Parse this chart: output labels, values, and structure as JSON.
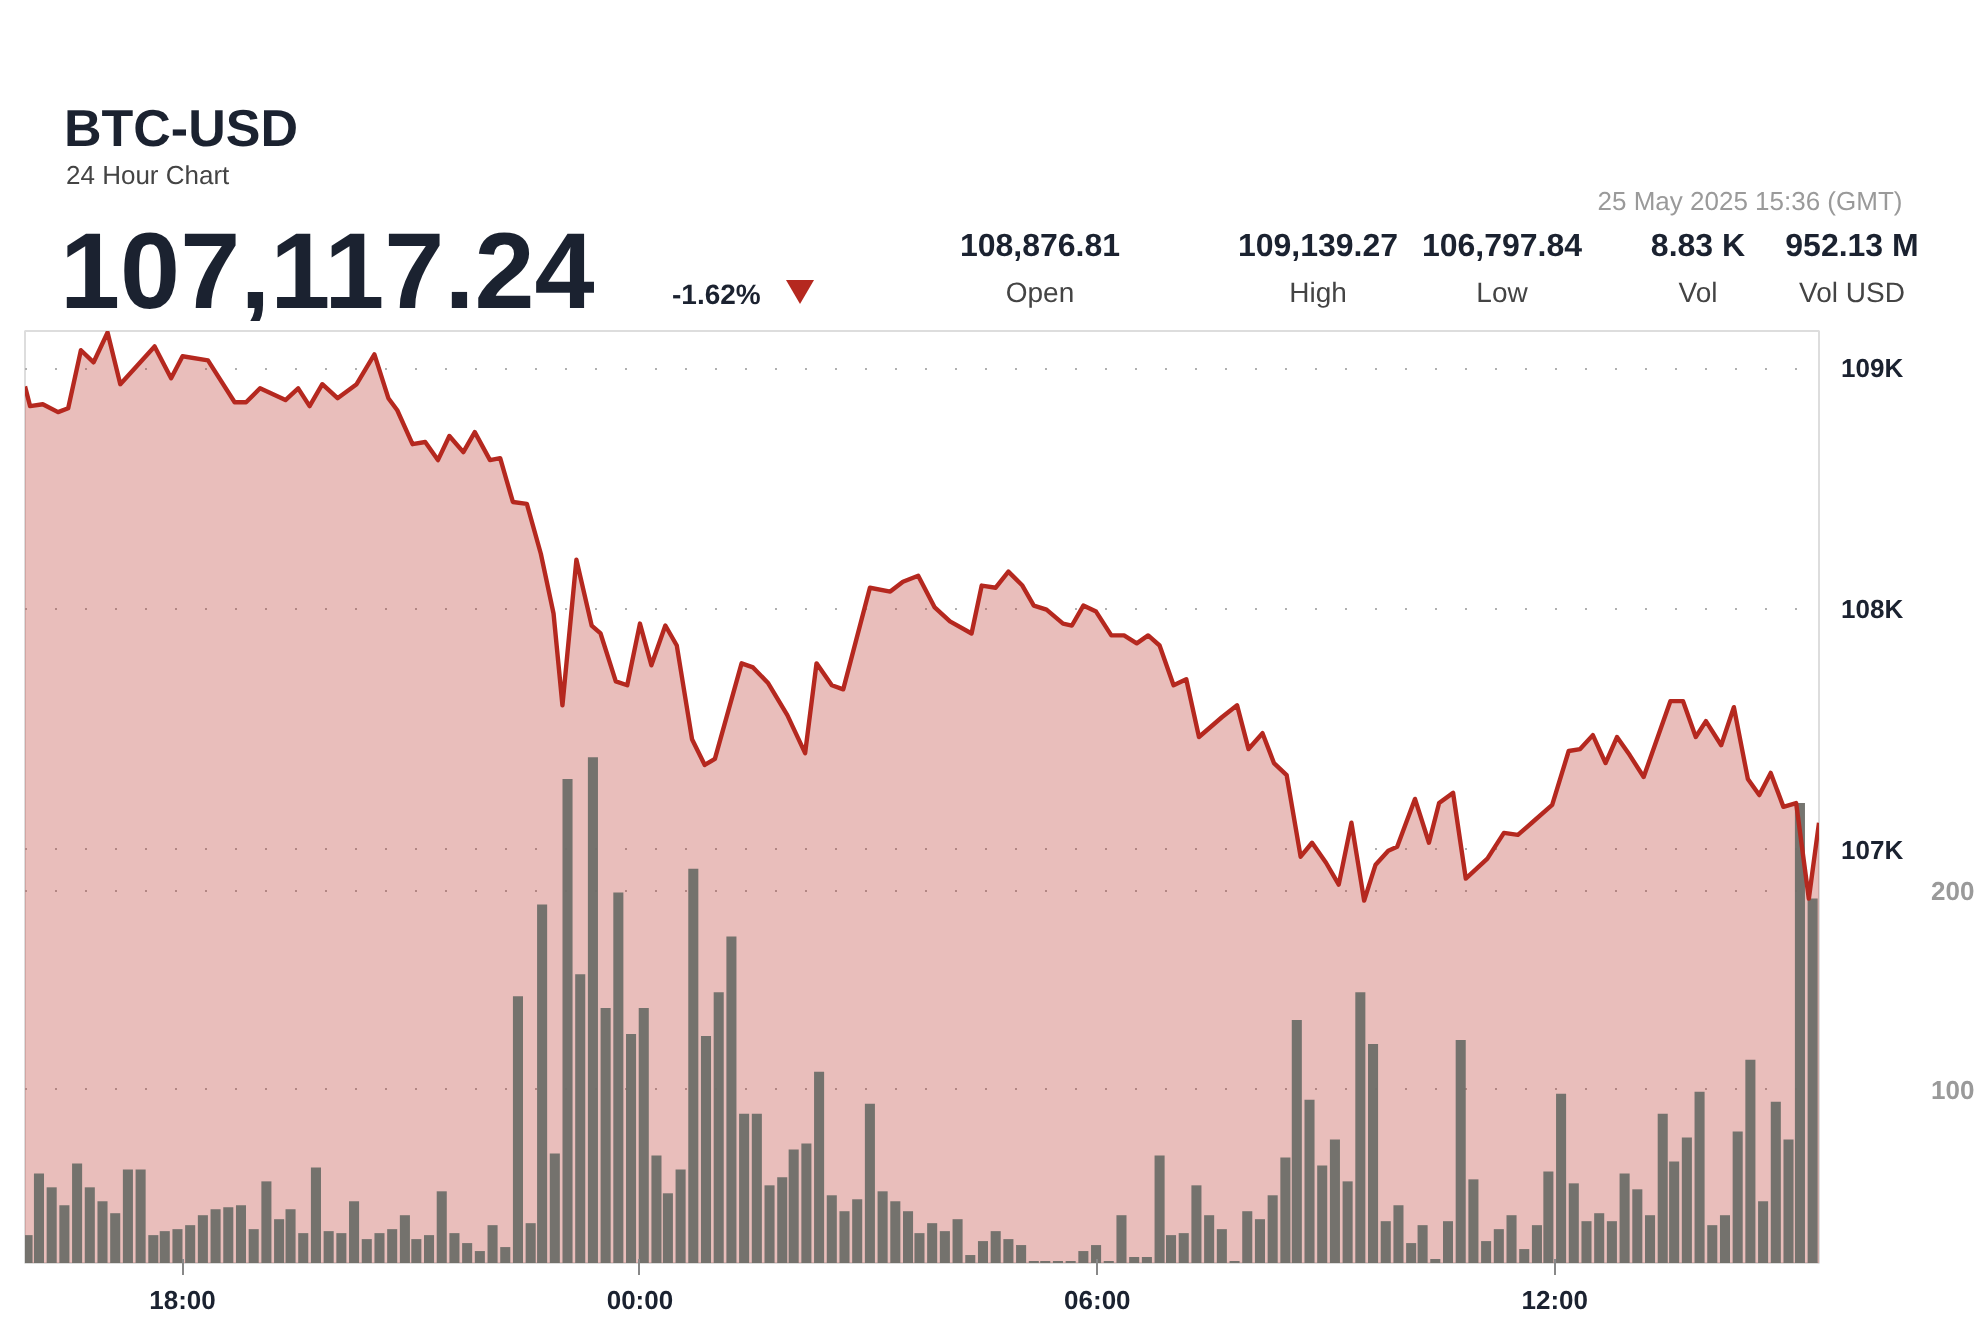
{
  "chart_data": {
    "type": "area",
    "title": "BTC-USD",
    "subtitle": "24 Hour Chart",
    "annotations": [
      "107,117.24",
      "-1.62%",
      "108,876.81",
      "Open",
      "109,139.27",
      "High",
      "106,797.84",
      "Low",
      "8.83 K",
      "Vol",
      "952.13 M",
      "Vol USD",
      "25 May 2025 15:36 (GMT)"
    ],
    "xlim": [
      "2025-05-24T15:56",
      "2025-05-25T15:28"
    ],
    "xticks": [
      {
        "value": "2025-05-24T18:00",
        "label": "18:00"
      },
      {
        "value": "2025-05-25T00:00",
        "label": "00:00"
      },
      {
        "value": "2025-05-25T06:00",
        "label": "06:00"
      },
      {
        "value": "2025-05-25T12:00",
        "label": "12:00"
      }
    ],
    "ylim": [
      105285,
      109155
    ],
    "yticks": [
      {
        "value": 107000,
        "label": "107K"
      },
      {
        "value": 108000,
        "label": "108K"
      },
      {
        "value": 109000,
        "label": "109K"
      }
    ],
    "y2lim": [
      13,
      481
    ],
    "y2ticks": [
      100,
      200
    ],
    "grid": "y",
    "series": [
      {
        "color": "#b5281f",
        "x": [
          "2025-05-24T15:56",
          "2025-05-24T16:00",
          "2025-05-24T16:10",
          "2025-05-24T16:22",
          "2025-05-24T16:30",
          "2025-05-24T16:40",
          "2025-05-24T16:50",
          "2025-05-24T17:01",
          "2025-05-24T17:11",
          "2025-05-24T17:38",
          "2025-05-24T17:51",
          "2025-05-24T18:00",
          "2025-05-24T18:20",
          "2025-05-24T18:41",
          "2025-05-24T18:50",
          "2025-05-24T19:01",
          "2025-05-24T19:21",
          "2025-05-24T19:31",
          "2025-05-24T19:40",
          "2025-05-24T19:50",
          "2025-05-24T20:02",
          "2025-05-24T20:17",
          "2025-05-24T20:31",
          "2025-05-24T20:42",
          "2025-05-24T20:49",
          "2025-05-24T21:01",
          "2025-05-24T21:11",
          "2025-05-24T21:21",
          "2025-05-24T21:30",
          "2025-05-24T21:41",
          "2025-05-24T21:50",
          "2025-05-24T22:02",
          "2025-05-24T22:10",
          "2025-05-24T22:20",
          "2025-05-24T22:31",
          "2025-05-24T22:42",
          "2025-05-24T22:52",
          "2025-05-24T22:59",
          "2025-05-24T23:10",
          "2025-05-24T23:22",
          "2025-05-24T23:29",
          "2025-05-24T23:41",
          "2025-05-24T23:50",
          "2025-05-25T00:00",
          "2025-05-25T00:09",
          "2025-05-25T00:20",
          "2025-05-25T00:29",
          "2025-05-25T00:41",
          "2025-05-25T00:51",
          "2025-05-25T00:59",
          "2025-05-25T01:20",
          "2025-05-25T01:29",
          "2025-05-25T01:41",
          "2025-05-25T01:56",
          "2025-05-25T02:10",
          "2025-05-25T02:19",
          "2025-05-25T02:31",
          "2025-05-25T02:40",
          "2025-05-25T03:01",
          "2025-05-25T03:17",
          "2025-05-25T03:27",
          "2025-05-25T03:39",
          "2025-05-25T03:52",
          "2025-05-25T04:04",
          "2025-05-25T04:21",
          "2025-05-25T04:29",
          "2025-05-25T04:40",
          "2025-05-25T04:50",
          "2025-05-25T05:01",
          "2025-05-25T05:10",
          "2025-05-25T05:20",
          "2025-05-25T05:33",
          "2025-05-25T05:40",
          "2025-05-25T05:49",
          "2025-05-25T05:59",
          "2025-05-25T06:11",
          "2025-05-25T06:21",
          "2025-05-25T06:31",
          "2025-05-25T06:40",
          "2025-05-25T06:49",
          "2025-05-25T07:00",
          "2025-05-25T07:10",
          "2025-05-25T07:20",
          "2025-05-25T07:38",
          "2025-05-25T07:50",
          "2025-05-25T07:59",
          "2025-05-25T08:10",
          "2025-05-25T08:19",
          "2025-05-25T08:29",
          "2025-05-25T08:40",
          "2025-05-25T08:49",
          "2025-05-25T09:00",
          "2025-05-25T09:10",
          "2025-05-25T09:20",
          "2025-05-25T09:30",
          "2025-05-25T09:39",
          "2025-05-25T09:49",
          "2025-05-25T09:56",
          "2025-05-25T10:10",
          "2025-05-25T10:21",
          "2025-05-25T10:29",
          "2025-05-25T10:40",
          "2025-05-25T10:50",
          "2025-05-25T11:07",
          "2025-05-25T11:20",
          "2025-05-25T11:31",
          "2025-05-25T11:42",
          "2025-05-25T11:58",
          "2025-05-25T12:11",
          "2025-05-25T12:20",
          "2025-05-25T12:30",
          "2025-05-25T12:40",
          "2025-05-25T12:49",
          "2025-05-25T12:59",
          "2025-05-25T13:10",
          "2025-05-25T13:31",
          "2025-05-25T13:41",
          "2025-05-25T13:51",
          "2025-05-25T13:59",
          "2025-05-25T14:11",
          "2025-05-25T14:21",
          "2025-05-25T14:32",
          "2025-05-25T14:41",
          "2025-05-25T14:50",
          "2025-05-25T15:00",
          "2025-05-25T15:10",
          "2025-05-25T15:20",
          "2025-05-25T15:28"
        ],
        "values": [
          108925,
          108843,
          108851,
          108818,
          108834,
          109075,
          109025,
          109149,
          108934,
          109091,
          108959,
          109050,
          109033,
          108859,
          108859,
          108917,
          108868,
          108917,
          108843,
          108934,
          108876,
          108934,
          109058,
          108876,
          108826,
          108685,
          108694,
          108619,
          108719,
          108652,
          108735,
          108619,
          108627,
          108445,
          108437,
          108230,
          107982,
          107601,
          108205,
          107932,
          107899,
          107700,
          107684,
          107940,
          107767,
          107932,
          107849,
          107460,
          107353,
          107378,
          107775,
          107758,
          107692,
          107560,
          107402,
          107775,
          107684,
          107667,
          108089,
          108073,
          108114,
          108139,
          108007,
          107949,
          107899,
          108098,
          108089,
          108156,
          108098,
          108015,
          107998,
          107940,
          107932,
          108015,
          107990,
          107891,
          107891,
          107858,
          107891,
          107849,
          107684,
          107709,
          107469,
          107551,
          107601,
          107419,
          107485,
          107361,
          107311,
          106972,
          107030,
          106947,
          106856,
          107113,
          106790,
          106939,
          106997,
          107013,
          107212,
          107030,
          107195,
          107237,
          106881,
          106964,
          107071,
          107063,
          107113,
          107187,
          107411,
          107419,
          107477,
          107361,
          107469,
          107394,
          107303,
          107618,
          107618,
          107469,
          107535,
          107435,
          107593,
          107295,
          107228,
          107320,
          107179,
          107195,
          106798,
          107113
        ]
      },
      {
        "type": "bar",
        "axis": "y2",
        "color": "#6e6e68",
        "x": [
          "2025-05-24T15:58",
          "2025-05-24T16:07",
          "2025-05-24T16:17",
          "2025-05-24T16:27",
          "2025-05-24T16:37",
          "2025-05-24T16:47",
          "2025-05-24T16:57",
          "2025-05-24T17:07",
          "2025-05-24T17:17",
          "2025-05-24T17:27",
          "2025-05-24T17:37",
          "2025-05-24T17:46",
          "2025-05-24T17:56",
          "2025-05-24T18:06",
          "2025-05-24T18:16",
          "2025-05-24T18:26",
          "2025-05-24T18:36",
          "2025-05-24T18:46",
          "2025-05-24T18:56",
          "2025-05-24T19:06",
          "2025-05-24T19:16",
          "2025-05-24T19:25",
          "2025-05-24T19:35",
          "2025-05-24T19:45",
          "2025-05-24T19:55",
          "2025-05-24T20:05",
          "2025-05-24T20:15",
          "2025-05-24T20:25",
          "2025-05-24T20:35",
          "2025-05-24T20:45",
          "2025-05-24T20:55",
          "2025-05-24T21:04",
          "2025-05-24T21:14",
          "2025-05-24T21:24",
          "2025-05-24T21:34",
          "2025-05-24T21:44",
          "2025-05-24T21:54",
          "2025-05-24T22:04",
          "2025-05-24T22:14",
          "2025-05-24T22:24",
          "2025-05-24T22:34",
          "2025-05-24T22:43",
          "2025-05-24T22:53",
          "2025-05-24T23:03",
          "2025-05-24T23:13",
          "2025-05-24T23:23",
          "2025-05-24T23:33",
          "2025-05-24T23:43",
          "2025-05-24T23:53",
          "2025-05-25T00:03",
          "2025-05-25T00:13",
          "2025-05-25T00:22",
          "2025-05-25T00:32",
          "2025-05-25T00:42",
          "2025-05-25T00:52",
          "2025-05-25T01:02",
          "2025-05-25T01:12",
          "2025-05-25T01:22",
          "2025-05-25T01:32",
          "2025-05-25T01:42",
          "2025-05-25T01:52",
          "2025-05-25T02:01",
          "2025-05-25T02:11",
          "2025-05-25T02:21",
          "2025-05-25T02:31",
          "2025-05-25T02:41",
          "2025-05-25T02:51",
          "2025-05-25T03:01",
          "2025-05-25T03:11",
          "2025-05-25T03:21",
          "2025-05-25T03:31",
          "2025-05-25T03:40",
          "2025-05-25T03:50",
          "2025-05-25T04:00",
          "2025-05-25T04:10",
          "2025-05-25T04:20",
          "2025-05-25T04:30",
          "2025-05-25T04:40",
          "2025-05-25T04:50",
          "2025-05-25T05:00",
          "2025-05-25T05:10",
          "2025-05-25T05:19",
          "2025-05-25T05:29",
          "2025-05-25T05:39",
          "2025-05-25T05:49",
          "2025-05-25T05:59",
          "2025-05-25T06:09",
          "2025-05-25T06:19",
          "2025-05-25T06:29",
          "2025-05-25T06:39",
          "2025-05-25T06:49",
          "2025-05-25T06:58",
          "2025-05-25T07:08",
          "2025-05-25T07:18",
          "2025-05-25T07:28",
          "2025-05-25T07:38",
          "2025-05-25T07:48",
          "2025-05-25T07:58",
          "2025-05-25T08:08",
          "2025-05-25T08:18",
          "2025-05-25T08:28",
          "2025-05-25T08:37",
          "2025-05-25T08:47",
          "2025-05-25T08:57",
          "2025-05-25T09:07",
          "2025-05-25T09:17",
          "2025-05-25T09:27",
          "2025-05-25T09:37",
          "2025-05-25T09:47",
          "2025-05-25T09:57",
          "2025-05-25T10:07",
          "2025-05-25T10:16",
          "2025-05-25T10:26",
          "2025-05-25T10:36",
          "2025-05-25T10:46",
          "2025-05-25T10:56",
          "2025-05-25T11:06",
          "2025-05-25T11:16",
          "2025-05-25T11:26",
          "2025-05-25T11:36",
          "2025-05-25T11:46",
          "2025-05-25T11:55",
          "2025-05-25T12:05",
          "2025-05-25T12:15",
          "2025-05-25T12:25",
          "2025-05-25T12:35",
          "2025-05-25T12:45",
          "2025-05-25T12:55",
          "2025-05-25T13:05",
          "2025-05-25T13:15",
          "2025-05-25T13:25",
          "2025-05-25T13:34",
          "2025-05-25T13:44",
          "2025-05-25T13:54",
          "2025-05-25T14:04",
          "2025-05-25T14:14",
          "2025-05-25T14:24",
          "2025-05-25T14:34",
          "2025-05-25T14:44",
          "2025-05-25T14:54",
          "2025-05-25T15:04",
          "2025-05-25T15:13",
          "2025-05-25T15:23"
        ],
        "values": [
          27,
          58,
          51,
          42,
          63,
          51,
          44,
          38,
          60,
          60,
          27,
          29,
          30,
          32,
          37,
          40,
          41,
          42,
          30,
          54,
          35,
          40,
          28,
          61,
          29,
          28,
          44,
          25,
          28,
          30,
          37,
          25,
          27,
          49,
          28,
          23,
          19,
          32,
          21,
          147,
          33,
          193,
          68,
          256,
          158,
          267,
          141,
          199,
          128,
          141,
          67,
          48,
          60,
          211,
          127,
          149,
          177,
          88,
          88,
          52,
          56,
          70,
          73,
          109,
          47,
          39,
          45,
          93,
          49,
          44,
          39,
          28,
          33,
          29,
          35,
          17,
          24,
          29,
          25,
          22,
          14,
          14,
          14,
          14,
          19,
          22,
          14,
          37,
          16,
          16,
          67,
          27,
          28,
          52,
          37,
          30,
          14,
          39,
          35,
          47,
          66,
          135,
          95,
          62,
          75,
          54,
          149,
          123,
          34,
          42,
          23,
          32,
          15,
          34,
          125,
          55,
          24,
          30,
          37,
          20,
          32,
          59,
          98,
          53,
          34,
          38,
          34,
          58,
          50,
          37,
          88,
          64,
          76,
          99,
          32,
          37,
          79,
          115,
          44,
          94,
          75,
          244,
          196
        ]
      }
    ]
  }
}
